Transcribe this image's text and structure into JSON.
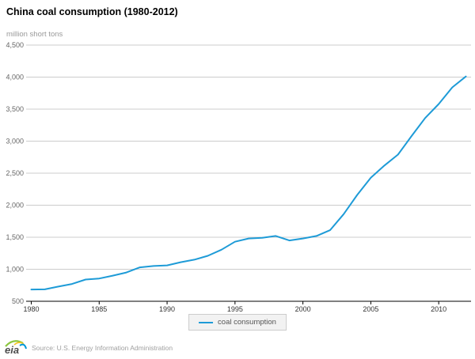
{
  "header": {
    "title": "China coal consumption (1980-2012)",
    "units_label": "million short tons"
  },
  "colors": {
    "line": "#1e9bd7",
    "grid": "#cccccc",
    "axis": "#000000",
    "y_tick_text": "#666666",
    "x_tick_text": "#333333",
    "legend_bg": "#f2f2f2",
    "legend_border": "#cccccc",
    "logo_green": "#8cc63f",
    "logo_yellow": "#f7c425",
    "logo_blue": "#0096d7",
    "logo_text_color": "#4d4d4d"
  },
  "chart_data": {
    "type": "line",
    "title": "China coal consumption (1980-2012)",
    "xlabel": "",
    "ylabel": "million short tons",
    "xlim": [
      1980,
      2012
    ],
    "ylim": [
      500,
      4500
    ],
    "grid": true,
    "legend_position": "bottom-center",
    "x": [
      1980,
      1981,
      1982,
      1983,
      1984,
      1985,
      1986,
      1987,
      1988,
      1989,
      1990,
      1991,
      1992,
      1993,
      1994,
      1995,
      1996,
      1997,
      1998,
      1999,
      2000,
      2001,
      2002,
      2003,
      2004,
      2005,
      2006,
      2007,
      2008,
      2009,
      2010,
      2011,
      2012
    ],
    "series": [
      {
        "name": "coal consumption",
        "values": [
          684,
          686,
          730,
          770,
          840,
          855,
          900,
          950,
          1030,
          1050,
          1060,
          1110,
          1150,
          1210,
          1305,
          1430,
          1480,
          1490,
          1520,
          1450,
          1480,
          1520,
          1610,
          1860,
          2160,
          2430,
          2620,
          2790,
          3080,
          3360,
          3580,
          3840,
          4010
        ]
      }
    ],
    "y_ticks": {
      "values": [
        500,
        1000,
        1500,
        2000,
        2500,
        3000,
        3500,
        4000,
        4500
      ],
      "labels": [
        "500",
        "1,000",
        "1,500",
        "2,000",
        "2,500",
        "3,000",
        "3,500",
        "4,000",
        "4,500"
      ]
    },
    "x_ticks": {
      "values": [
        1980,
        1985,
        1990,
        1995,
        2000,
        2005,
        2010
      ],
      "labels": [
        "1980",
        "1985",
        "1990",
        "1995",
        "2000",
        "2005",
        "2010"
      ]
    }
  },
  "legend": {
    "label": "coal consumption"
  },
  "footer": {
    "logo_text": "eia",
    "source": "Source: U.S. Energy Information Administration"
  }
}
